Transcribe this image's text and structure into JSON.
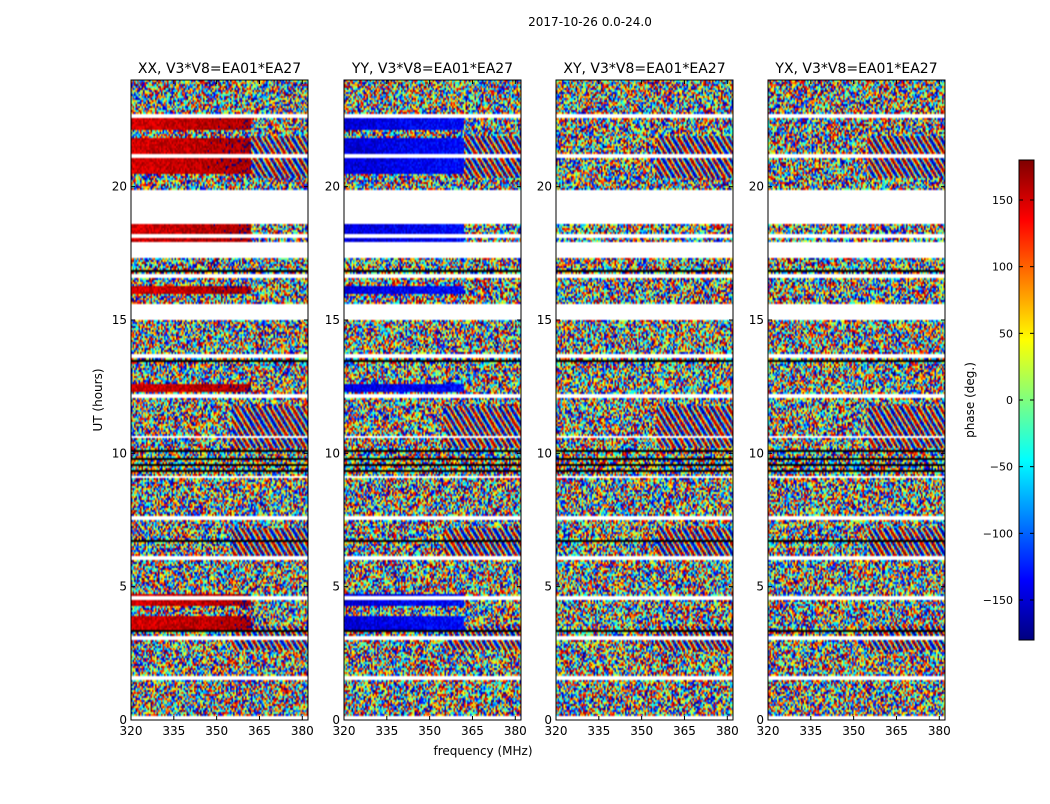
{
  "figure": {
    "suptitle": "2017-10-26 0.0-24.0",
    "xlabel": "frequency (MHz)",
    "ylabel": "UT (hours)"
  },
  "colorbar": {
    "label": "phase (deg.)",
    "range": [
      -180,
      180
    ],
    "ticks": [
      150,
      100,
      50,
      0,
      -50,
      -100,
      -150
    ],
    "tick_labels": [
      "150",
      "100",
      "50",
      "0",
      "−50",
      "−100",
      "−150"
    ],
    "colormap": "jet",
    "stops": [
      "#00007f",
      "#0000ff",
      "#007fff",
      "#00ffff",
      "#7fff7f",
      "#ffff00",
      "#ff7f00",
      "#ff0000",
      "#7f0000"
    ]
  },
  "chart_data": [
    {
      "type": "heatmap",
      "title": "XX, V3*V8=EA01*EA27",
      "xlabel": "",
      "ylabel": "UT (hours)",
      "xlim": [
        320,
        382
      ],
      "ylim": [
        0,
        24
      ],
      "xticks": [
        320,
        335,
        350,
        365,
        380
      ],
      "yticks": [
        0,
        5,
        10,
        15,
        20
      ],
      "show_yticklabels": true,
      "value": "visibility phase (deg)",
      "flagged_ut_ranges": [
        [
          15.0,
          15.6
        ],
        [
          17.3,
          17.9
        ],
        [
          18.6,
          19.9
        ]
      ],
      "coherent_ut_ranges": [
        [
          22.1,
          22.6
        ],
        [
          20.5,
          21.8
        ],
        [
          16.0,
          16.3
        ],
        [
          17.9,
          18.6
        ],
        [
          12.3,
          12.6
        ],
        [
          4.3,
          4.7
        ],
        [
          3.3,
          3.9
        ]
      ],
      "coherent_freq_range": [
        320,
        362
      ],
      "dominant_phase_deg": 150
    },
    {
      "type": "heatmap",
      "title": "YY, V3*V8=EA01*EA27",
      "xlabel": "frequency (MHz)",
      "ylabel": "",
      "xlim": [
        320,
        382
      ],
      "ylim": [
        0,
        24
      ],
      "xticks": [
        320,
        335,
        350,
        365,
        380
      ],
      "yticks": [
        0,
        5,
        10,
        15,
        20
      ],
      "show_yticklabels": true,
      "value": "visibility phase (deg)",
      "flagged_ut_ranges": [
        [
          15.0,
          15.6
        ],
        [
          17.3,
          17.9
        ],
        [
          18.6,
          19.9
        ]
      ],
      "coherent_ut_ranges": [
        [
          22.1,
          22.6
        ],
        [
          20.5,
          21.8
        ],
        [
          16.0,
          16.3
        ],
        [
          17.9,
          18.6
        ],
        [
          12.3,
          12.6
        ],
        [
          4.3,
          4.7
        ],
        [
          3.3,
          3.9
        ]
      ],
      "coherent_freq_range": [
        320,
        362
      ],
      "dominant_phase_deg": -150
    },
    {
      "type": "heatmap",
      "title": "XY, V3*V8=EA01*EA27",
      "xlabel": "",
      "ylabel": "",
      "xlim": [
        320,
        382
      ],
      "ylim": [
        0,
        24
      ],
      "xticks": [
        320,
        335,
        350,
        365,
        380
      ],
      "yticks": [
        0,
        5,
        10,
        15,
        20
      ],
      "show_yticklabels": true,
      "value": "visibility phase (deg)",
      "flagged_ut_ranges": [
        [
          15.0,
          15.6
        ],
        [
          17.3,
          17.9
        ],
        [
          18.6,
          19.9
        ]
      ],
      "coherent_ut_ranges": [],
      "coherent_freq_range": [
        320,
        362
      ],
      "dominant_phase_deg": 0
    },
    {
      "type": "heatmap",
      "title": "YX, V3*V8=EA01*EA27",
      "xlabel": "",
      "ylabel": "",
      "xlim": [
        320,
        382
      ],
      "ylim": [
        0,
        24
      ],
      "xticks": [
        320,
        335,
        350,
        365,
        380
      ],
      "yticks": [
        0,
        5,
        10,
        15,
        20
      ],
      "show_yticklabels": true,
      "value": "visibility phase (deg)",
      "flagged_ut_ranges": [
        [
          15.0,
          15.6
        ],
        [
          17.3,
          17.9
        ],
        [
          18.6,
          19.9
        ]
      ],
      "coherent_ut_ranges": [],
      "coherent_freq_range": [
        320,
        362
      ],
      "dominant_phase_deg": 0
    }
  ]
}
